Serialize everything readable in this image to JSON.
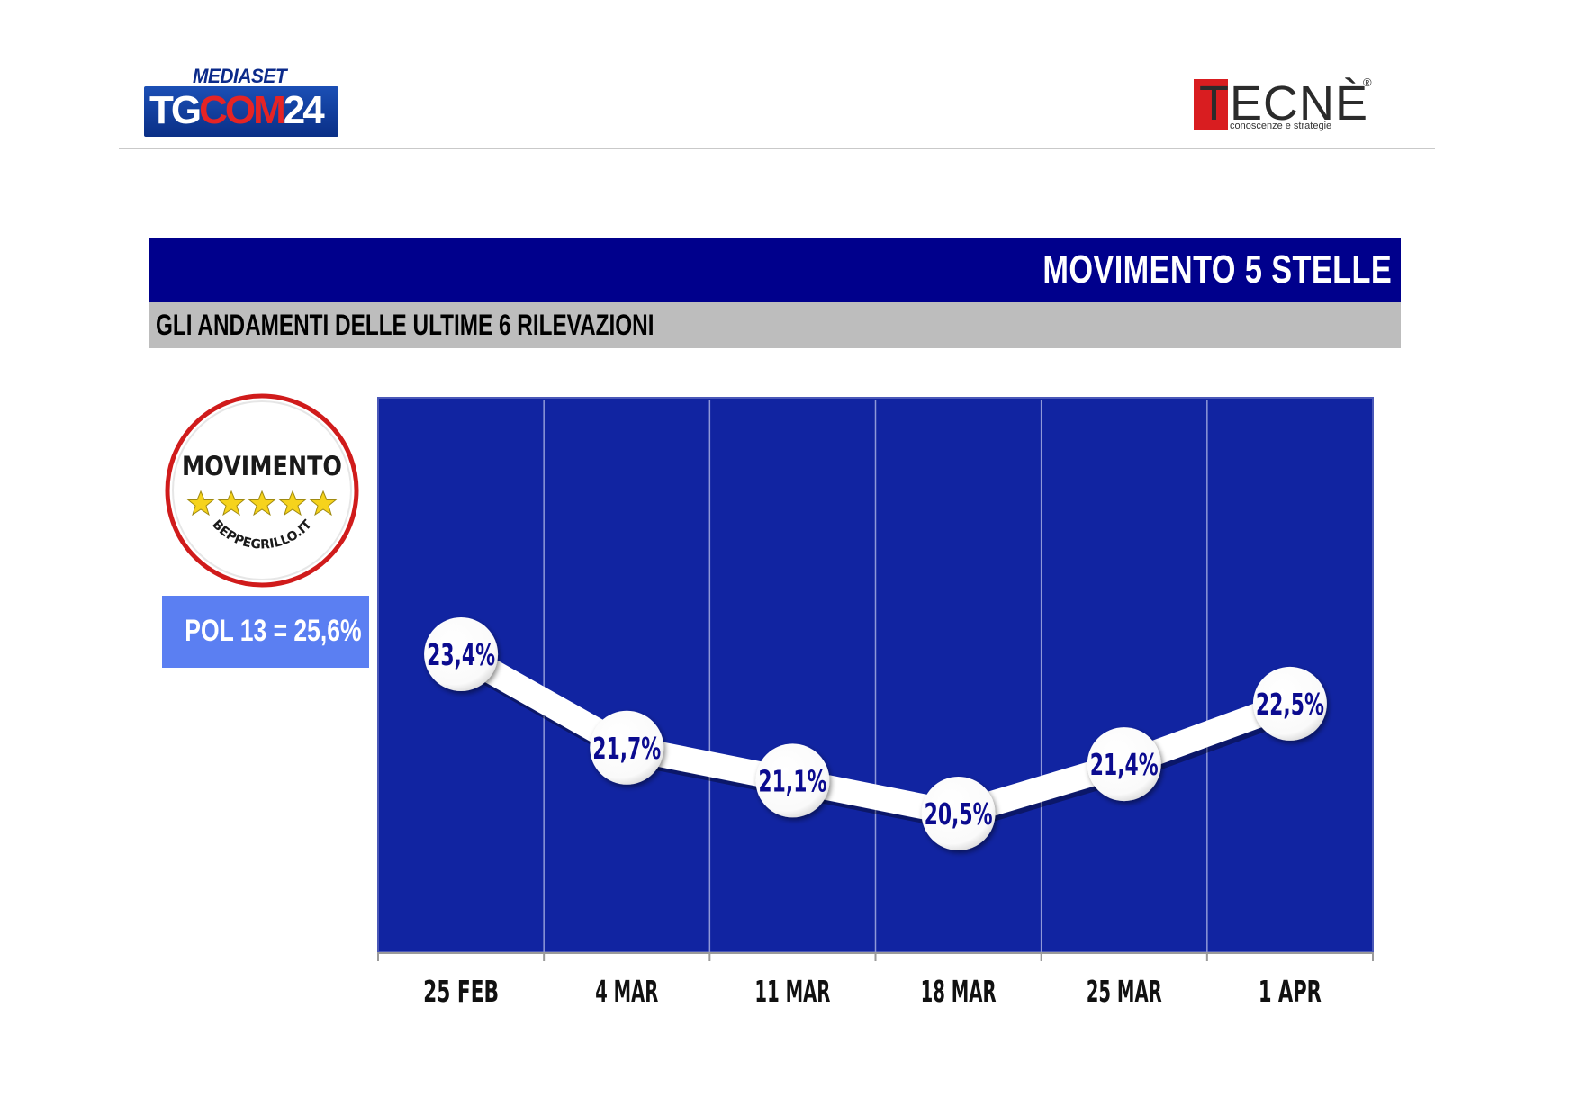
{
  "header": {
    "tgcom_logo": {
      "top_text": "MEDIASET",
      "main_text_white": "TG",
      "main_text_red": "COM",
      "main_text_number": "24"
    },
    "tecne_logo": {
      "word": "TECNÈ",
      "registered": "®",
      "tagline": "conoscenze e strategie"
    }
  },
  "title": "MOVIMENTO 5 STELLE",
  "subtitle": "GLI ANDAMENTI DELLE ULTIME 6 RILEVAZIONI",
  "party_logo": {
    "name": "MOVIMENTO",
    "site": "BEPPEGRILLO.IT",
    "icon": "five-stars-icon"
  },
  "poll_box": {
    "text": "POL 13 = 25,6%"
  },
  "colors": {
    "title_bar": "#00008c",
    "subtitle_bar": "#bdbdbd",
    "chart_bg": "#1124a1",
    "poll_box": "#5b7ff2",
    "label_text": "#0b0b8f",
    "logo_red": "#d91d20"
  },
  "chart_data": {
    "type": "line",
    "categories": [
      "25 FEB",
      "4 MAR",
      "11 MAR",
      "18 MAR",
      "25 MAR",
      "1 APR"
    ],
    "values": [
      23.4,
      21.7,
      21.1,
      20.5,
      21.4,
      22.5
    ],
    "data_labels": [
      "23,4%",
      "21,7%",
      "21,1%",
      "20,5%",
      "21,4%",
      "22,5%"
    ],
    "grid": "vertical lines between categories",
    "legend": "none"
  }
}
